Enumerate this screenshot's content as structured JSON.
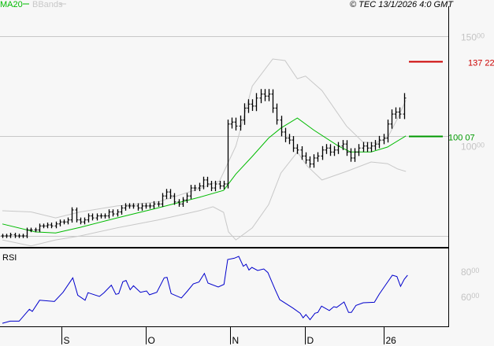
{
  "header": {
    "legend_ma": "MA20",
    "legend_bb": "BBands",
    "copyright": "© TEC 13/1/2026 4:0 GMT"
  },
  "colors": {
    "ma": "#00bb00",
    "bbands": "#c8c8c8",
    "rsi": "#0000cc",
    "marker_high": "#cc0000",
    "marker_ma": "#009900",
    "bars": "#000000",
    "grid": "#c8c8c8"
  },
  "chart_data": [
    {
      "type": "ohlc-bar",
      "panel": "price",
      "yticks": [
        {
          "value": 150,
          "int": "150",
          "dec": "00"
        },
        {
          "value": 100,
          "int": "100",
          "dec": "00"
        },
        {
          "value": 50,
          "int": "",
          "dec": ""
        }
      ],
      "ylim": [
        44,
        160
      ],
      "xticks": [
        {
          "bar": 14.5,
          "label": "S"
        },
        {
          "bar": 35,
          "label": "O"
        },
        {
          "bar": 55.6,
          "label": "N"
        },
        {
          "bar": 73.9,
          "label": "D"
        },
        {
          "bar": 93.1,
          "label": "26"
        }
      ],
      "closes": [
        50,
        50,
        50.5,
        50,
        50,
        50,
        53,
        53,
        53,
        55,
        55,
        55.5,
        55,
        56,
        57,
        57,
        58,
        63,
        58,
        57,
        58,
        60,
        59,
        60,
        60,
        60,
        62,
        61,
        62,
        64,
        65,
        65,
        65,
        64,
        65,
        65,
        65,
        66,
        66,
        70,
        72,
        70,
        67,
        66,
        68,
        70,
        74,
        74,
        75,
        78,
        76,
        74,
        76,
        75,
        76,
        106,
        107,
        105,
        108,
        114,
        116,
        115,
        119,
        121,
        120,
        121,
        114,
        108,
        102,
        99,
        98,
        94,
        93,
        90,
        88,
        86,
        89,
        90,
        93,
        94,
        92,
        93,
        95,
        96,
        92,
        89,
        92,
        94,
        95,
        94,
        95,
        96,
        98,
        99,
        106,
        111,
        112,
        111,
        119
      ],
      "ma20": [
        [
          0,
          56
        ],
        [
          8,
          52
        ],
        [
          13,
          51.5
        ],
        [
          19,
          54.3
        ],
        [
          28,
          59
        ],
        [
          38,
          64
        ],
        [
          48,
          69.3
        ],
        [
          54,
          72.8
        ],
        [
          57,
          81
        ],
        [
          61,
          89.8
        ],
        [
          65,
          99
        ],
        [
          68,
          104
        ],
        [
          72,
          109
        ],
        [
          76,
          103
        ],
        [
          82,
          95
        ],
        [
          85,
          92
        ],
        [
          90,
          92
        ],
        [
          94,
          94.5
        ],
        [
          98.5,
          100.07
        ]
      ],
      "bb_upper": [
        [
          0,
          62.6
        ],
        [
          7,
          62
        ],
        [
          13,
          59
        ],
        [
          19,
          62
        ],
        [
          28,
          65
        ],
        [
          38,
          67
        ],
        [
          48,
          73.6
        ],
        [
          53,
          77.5
        ],
        [
          57,
          95
        ],
        [
          61,
          125
        ],
        [
          66,
          138.6
        ],
        [
          69,
          137.8
        ],
        [
          72,
          128.7
        ],
        [
          74,
          130
        ],
        [
          78,
          122.8
        ],
        [
          84,
          105
        ],
        [
          88,
          97
        ],
        [
          91,
          96.5
        ],
        [
          94,
          99
        ],
        [
          96.5,
          109
        ],
        [
          98.5,
          118
        ]
      ],
      "bb_lower": [
        [
          0,
          48
        ],
        [
          7,
          45
        ],
        [
          13,
          48
        ],
        [
          19,
          50
        ],
        [
          28,
          54
        ],
        [
          38,
          58
        ],
        [
          48,
          62.6
        ],
        [
          51.4,
          64.6
        ],
        [
          54,
          61.8
        ],
        [
          55.2,
          52
        ],
        [
          57,
          48
        ],
        [
          61,
          54
        ],
        [
          65,
          65.7
        ],
        [
          68,
          81.5
        ],
        [
          72,
          92
        ],
        [
          74.4,
          85
        ],
        [
          78,
          78
        ],
        [
          84,
          82.3
        ],
        [
          90,
          87
        ],
        [
          94,
          86.2
        ],
        [
          96.5,
          83.5
        ],
        [
          98.5,
          82.3
        ]
      ],
      "markers": [
        {
          "name": "high",
          "value": 137.22,
          "text": "137",
          "dec": "22"
        },
        {
          "name": "ma",
          "value": 100.07,
          "text": "100",
          "dec": "07"
        }
      ]
    },
    {
      "type": "line",
      "panel": "rsi",
      "title": "RSI",
      "yticks": [
        {
          "value": 80,
          "int": "80",
          "dec": "00"
        },
        {
          "value": 60,
          "int": "60",
          "dec": "00"
        }
      ],
      "points": [
        [
          0,
          38.7
        ],
        [
          1.9,
          40.4
        ],
        [
          4.1,
          40.4
        ],
        [
          6.6,
          49.8
        ],
        [
          7.3,
          48.1
        ],
        [
          9.1,
          57
        ],
        [
          12.7,
          56
        ],
        [
          14.8,
          63.3
        ],
        [
          17.2,
          74.8
        ],
        [
          18.4,
          61
        ],
        [
          20.2,
          57
        ],
        [
          20.9,
          63
        ],
        [
          23.7,
          60
        ],
        [
          24.8,
          63
        ],
        [
          26.6,
          69
        ],
        [
          27.7,
          61.7
        ],
        [
          28.4,
          62.3
        ],
        [
          29.4,
          71.7
        ],
        [
          30.2,
          72.7
        ],
        [
          31.2,
          65.4
        ],
        [
          32,
          68.5
        ],
        [
          33.7,
          63.3
        ],
        [
          35.2,
          64.4
        ],
        [
          35.9,
          61.3
        ],
        [
          37.7,
          63.3
        ],
        [
          39.5,
          74.8
        ],
        [
          40.2,
          75.2
        ],
        [
          41.2,
          62.3
        ],
        [
          43.7,
          58.8
        ],
        [
          45.2,
          64.4
        ],
        [
          46.6,
          70
        ],
        [
          48,
          71.5
        ],
        [
          49.3,
          78.3
        ],
        [
          50.2,
          70.6
        ],
        [
          52.7,
          67.5
        ],
        [
          54.1,
          69.6
        ],
        [
          55,
          89.4
        ],
        [
          56.6,
          90.4
        ],
        [
          57.7,
          91.9
        ],
        [
          58.8,
          84
        ],
        [
          59.5,
          85.6
        ],
        [
          60.2,
          81
        ],
        [
          60.9,
          83.1
        ],
        [
          62.3,
          80.6
        ],
        [
          63.8,
          81.9
        ],
        [
          64.8,
          79
        ],
        [
          66.6,
          65.4
        ],
        [
          67.7,
          57.5
        ],
        [
          70.9,
          50.8
        ],
        [
          72.7,
          46.7
        ],
        [
          73.4,
          43
        ],
        [
          74.1,
          45.6
        ],
        [
          75.1,
          41.5
        ],
        [
          76.3,
          46.7
        ],
        [
          77,
          47.3
        ],
        [
          77.9,
          52.3
        ],
        [
          79.8,
          48.8
        ],
        [
          80.9,
          51.9
        ],
        [
          81.6,
          51.3
        ],
        [
          83.4,
          55.6
        ],
        [
          84.5,
          47.3
        ],
        [
          85.2,
          47.3
        ],
        [
          86.3,
          52.9
        ],
        [
          88.1,
          55
        ],
        [
          90.8,
          55.4
        ],
        [
          92,
          61.9
        ],
        [
          93.4,
          68.5
        ],
        [
          95.2,
          76.9
        ],
        [
          96.3,
          75.8
        ],
        [
          97.2,
          68
        ],
        [
          98.1,
          73.6
        ],
        [
          98.9,
          76.9
        ]
      ],
      "ylim": [
        36,
        100
      ]
    }
  ]
}
